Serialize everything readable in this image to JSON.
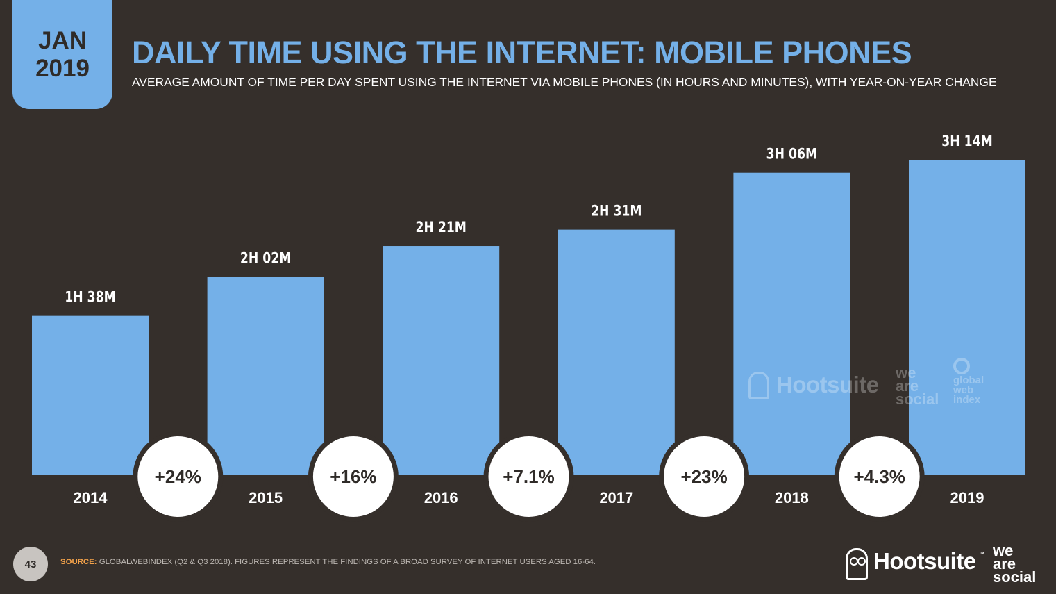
{
  "header": {
    "month": "JAN",
    "year": "2019",
    "title": "DAILY TIME USING THE INTERNET: MOBILE PHONES",
    "subtitle": "AVERAGE AMOUNT OF TIME PER DAY SPENT USING THE INTERNET VIA MOBILE PHONES (IN HOURS AND MINUTES), WITH YEAR-ON-YEAR CHANGE"
  },
  "colors": {
    "background": "#352f2b",
    "accent": "#74b0e8",
    "bubble": "#ffffff",
    "text_dark": "#2f2b28",
    "source_label": "#f5a34a"
  },
  "chart_data": {
    "type": "bar",
    "categories": [
      "2014",
      "2015",
      "2016",
      "2017",
      "2018",
      "2019"
    ],
    "values": [
      98,
      122,
      141,
      151,
      186,
      194
    ],
    "value_labels": [
      "1H 38M",
      "2H 02M",
      "2H 21M",
      "2H 31M",
      "3H 06M",
      "3H 14M"
    ],
    "changes": [
      "+24%",
      "+16%",
      "+7.1%",
      "+23%",
      "+4.3%"
    ],
    "ylim": [
      0,
      194
    ],
    "grid": false,
    "legend": "none"
  },
  "watermark": {
    "brand1": "Hootsuite",
    "brand1_tm": "™",
    "brand2_lines": [
      "we",
      "are",
      "social"
    ],
    "brand3_lines": [
      "global",
      "web",
      "index"
    ]
  },
  "footer": {
    "page_number": "43",
    "source_label": "SOURCE:",
    "source_text": "GLOBALWEBINDEX (Q2 & Q3 2018). FIGURES REPRESENT THE FINDINGS OF A BROAD SURVEY OF INTERNET USERS AGED 16-64.",
    "brand1": "Hootsuite",
    "brand1_tm": "™",
    "brand2_lines": [
      "we",
      "are",
      "social"
    ]
  }
}
